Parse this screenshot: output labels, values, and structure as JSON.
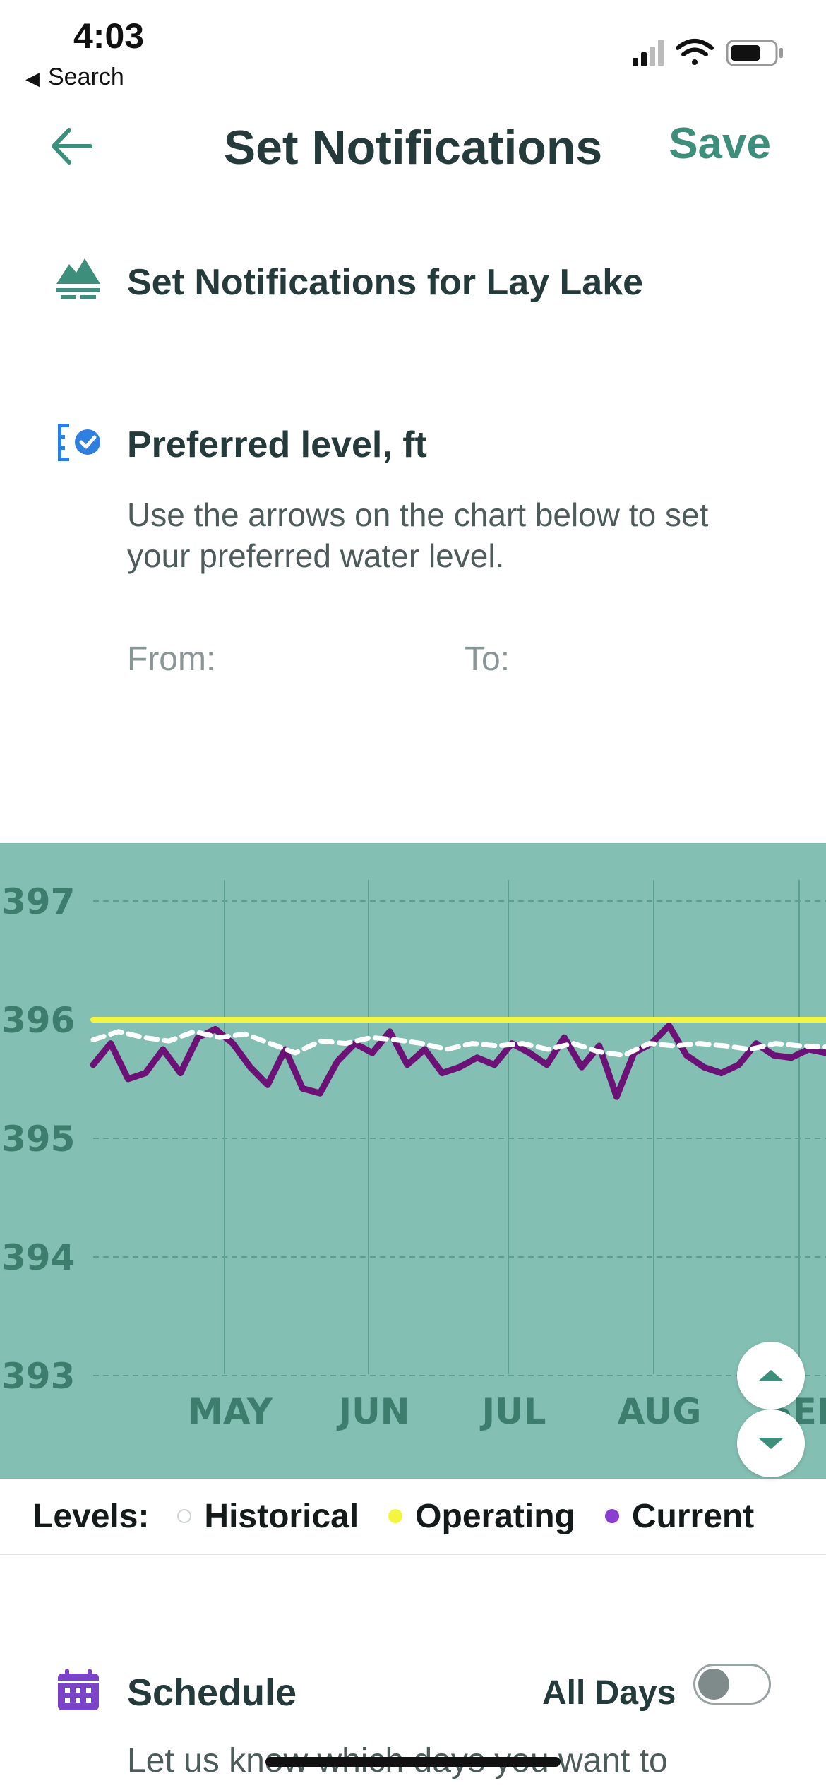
{
  "status_bar": {
    "time": "4:03",
    "back_app_label": "Search"
  },
  "header": {
    "title": "Set Notifications",
    "save_label": "Save"
  },
  "lake": {
    "title": "Set Notifications for Lay Lake"
  },
  "preferred_level": {
    "title": "Preferred level, ft",
    "description": "Use the arrows on the chart below to set your preferred water level.",
    "from_label": "From:",
    "to_label": "To:"
  },
  "chart_data": {
    "type": "line",
    "ylim": [
      393,
      397
    ],
    "y_ticks": [
      397,
      396,
      395,
      394,
      393
    ],
    "x_ticks": [
      "MAY",
      "JUN",
      "JUL",
      "AUG",
      "SEP"
    ],
    "grid": true,
    "series": [
      {
        "name": "Operating",
        "color": "#f3f53f",
        "values": [
          396.0,
          396.0,
          396.0,
          396.0,
          396.0,
          396.0,
          396.0,
          396.0,
          396.0,
          396.0,
          396.0,
          396.0,
          396.0,
          396.0,
          396.0,
          396.0,
          396.0,
          396.0,
          396.0,
          396.0
        ]
      },
      {
        "name": "Historical",
        "color": "#ffffff",
        "values": [
          395.83,
          395.9,
          395.85,
          395.82,
          395.9,
          395.85,
          395.88,
          395.8,
          395.72,
          395.82,
          395.8,
          395.85,
          395.83,
          395.8,
          395.75,
          395.8,
          395.78,
          395.8,
          395.75,
          395.8,
          395.73,
          395.7,
          395.8,
          395.78,
          395.8,
          395.78,
          395.75,
          395.8,
          395.78,
          395.77
        ]
      },
      {
        "name": "Current",
        "color": "#6c1277",
        "values": [
          395.62,
          395.8,
          395.5,
          395.55,
          395.75,
          395.55,
          395.85,
          395.92,
          395.8,
          395.6,
          395.45,
          395.75,
          395.42,
          395.38,
          395.65,
          395.8,
          395.72,
          395.9,
          395.62,
          395.75,
          395.55,
          395.6,
          395.68,
          395.62,
          395.8,
          395.72,
          395.62,
          395.85,
          395.6,
          395.78,
          395.35,
          395.72,
          395.8,
          395.95,
          395.7,
          395.6,
          395.55,
          395.62,
          395.8,
          395.7,
          395.68,
          395.75,
          395.72
        ]
      }
    ]
  },
  "legend": {
    "label": "Levels:",
    "items": [
      {
        "name": "Historical",
        "color": "#ffffff"
      },
      {
        "name": "Operating",
        "color": "#f3f53f"
      },
      {
        "name": "Current",
        "color": "#8a3fd1"
      }
    ]
  },
  "schedule": {
    "title": "Schedule",
    "all_days_label": "All Days",
    "all_days_on": false,
    "description": "Let us know which days you want to"
  },
  "colors": {
    "accent": "#3d8f7b",
    "chart_bg": "#83bfb2",
    "schedule_icon": "#7b43c9",
    "level_icon": "#2f7fe0"
  }
}
